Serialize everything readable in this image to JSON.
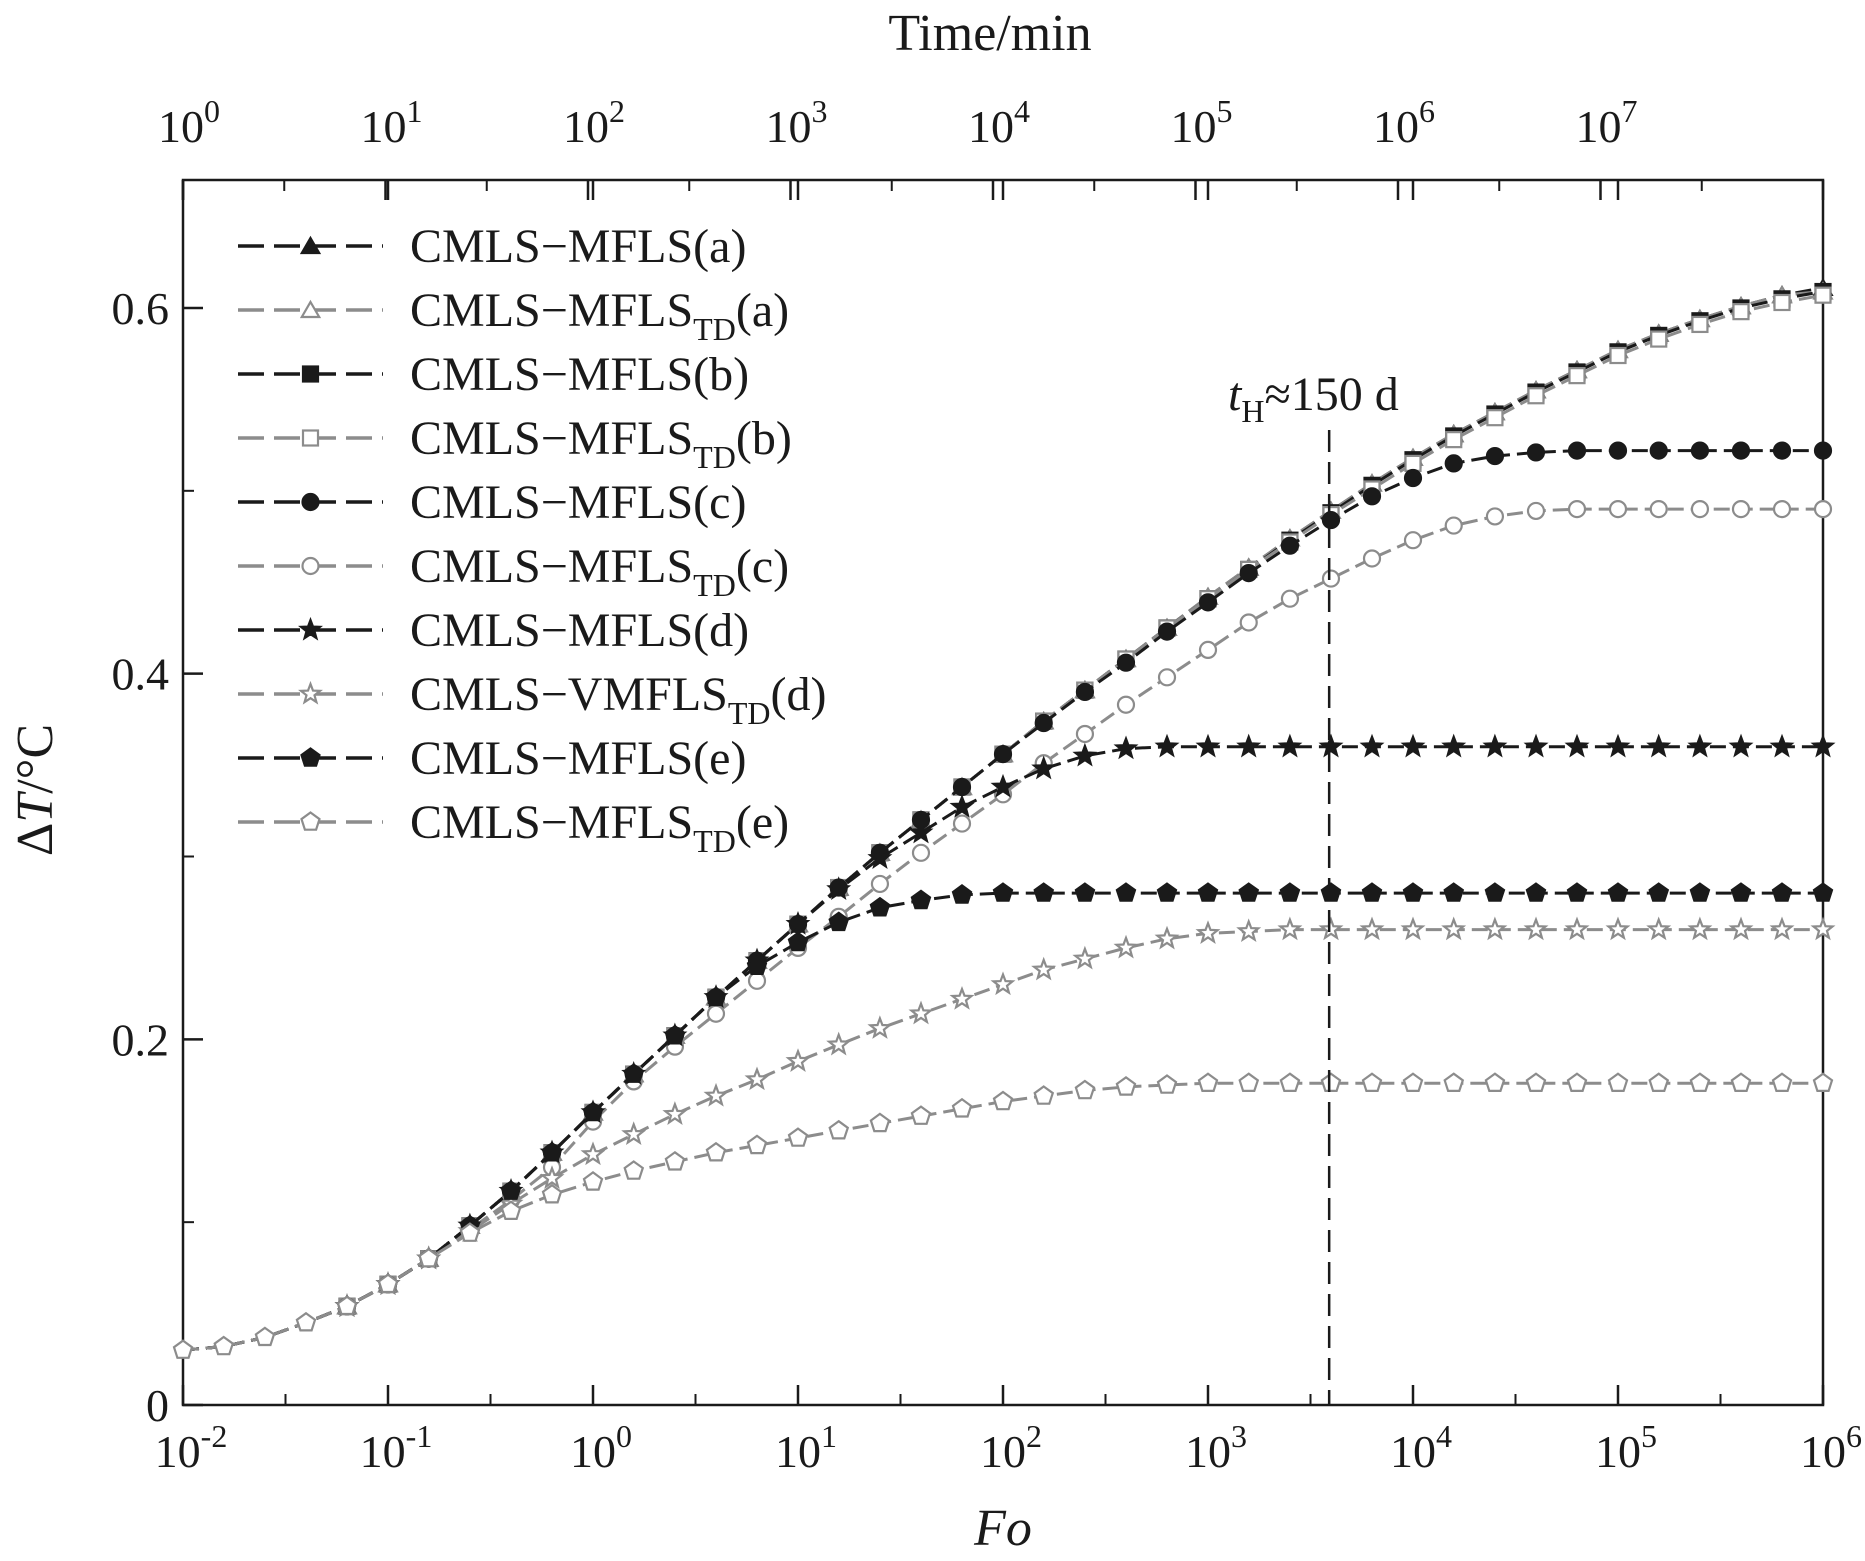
{
  "chart_data": {
    "type": "line",
    "x_scale": "log",
    "xlabel": "Fo",
    "x2label": "Time/min",
    "ylabel_symbol": "Δ",
    "ylabel_var": "T",
    "ylabel_unit": "/°C",
    "xlim": [
      0.01,
      1000000
    ],
    "ylim": [
      0,
      0.67
    ],
    "x_ticks": [
      {
        "base": "10",
        "exp": "-2",
        "value": 0.01
      },
      {
        "base": "10",
        "exp": "-1",
        "value": 0.1
      },
      {
        "base": "10",
        "exp": "0",
        "value": 1
      },
      {
        "base": "10",
        "exp": "1",
        "value": 10
      },
      {
        "base": "10",
        "exp": "2",
        "value": 100
      },
      {
        "base": "10",
        "exp": "3",
        "value": 1000
      },
      {
        "base": "10",
        "exp": "4",
        "value": 10000
      },
      {
        "base": "10",
        "exp": "5",
        "value": 100000
      },
      {
        "base": "10",
        "exp": "6",
        "value": 1000000
      }
    ],
    "x2_ticks": [
      {
        "base": "10",
        "exp": "0"
      },
      {
        "base": "10",
        "exp": "1"
      },
      {
        "base": "10",
        "exp": "2"
      },
      {
        "base": "10",
        "exp": "3"
      },
      {
        "base": "10",
        "exp": "4"
      },
      {
        "base": "10",
        "exp": "5"
      },
      {
        "base": "10",
        "exp": "6"
      },
      {
        "base": "10",
        "exp": "7"
      }
    ],
    "y_ticks": [
      {
        "label": "0",
        "value": 0
      },
      {
        "label": "0.2",
        "value": 0.2
      },
      {
        "label": "0.4",
        "value": 0.4
      },
      {
        "label": "0.6",
        "value": 0.6
      }
    ],
    "y_minor_ticks": [
      0.1,
      0.3,
      0.5
    ],
    "annotation": {
      "italic": "t",
      "sub": "H",
      "rest": "≈150 d",
      "x": 3900
    },
    "series": [
      {
        "name": "CMLS−MFLS(a)",
        "main": "CMLS−MFLS",
        "sub": "",
        "suffix": "(a)",
        "color": "#1a1a1a",
        "marker": "triangle",
        "filled": true,
        "growth": 10
      },
      {
        "name": "CMLS−MFLSTD(a)",
        "main": "CMLS−MFLS",
        "sub": "TD",
        "suffix": "(a)",
        "color": "#8c8c8c",
        "marker": "triangle",
        "filled": false,
        "growth": 10
      },
      {
        "name": "CMLS−MFLS(b)",
        "main": "CMLS−MFLS",
        "sub": "",
        "suffix": "(b)",
        "color": "#1a1a1a",
        "marker": "square",
        "filled": true,
        "growth": 10
      },
      {
        "name": "CMLS−MFLSTD(b)",
        "main": "CMLS−MFLS",
        "sub": "TD",
        "suffix": "(b)",
        "color": "#8c8c8c",
        "marker": "square",
        "filled": false,
        "growth": 10
      },
      {
        "name": "CMLS−MFLS(c)",
        "main": "CMLS−MFLS",
        "sub": "",
        "suffix": "(c)",
        "color": "#1a1a1a",
        "marker": "circle",
        "filled": true,
        "growth": 9
      },
      {
        "name": "CMLS−MFLSTD(c)",
        "main": "CMLS−MFLS",
        "sub": "TD",
        "suffix": "(c)",
        "color": "#8c8c8c",
        "marker": "circle",
        "filled": false,
        "growth": 8
      },
      {
        "name": "CMLS−MFLS(d)",
        "main": "CMLS−MFLS",
        "sub": "",
        "suffix": "(d)",
        "color": "#1a1a1a",
        "marker": "star",
        "filled": true,
        "growth": 7
      },
      {
        "name": "CMLS−VMFLSTD(d)",
        "main": "CMLS−VMFLS",
        "sub": "TD",
        "suffix": "(d)",
        "color": "#8c8c8c",
        "marker": "star",
        "filled": false,
        "growth": 6
      },
      {
        "name": "CMLS−MFLS(e)",
        "main": "CMLS−MFLS",
        "sub": "",
        "suffix": "(e)",
        "color": "#1a1a1a",
        "marker": "pentagon",
        "filled": true,
        "growth": 6
      },
      {
        "name": "CMLS−MFLSTD(e)",
        "main": "CMLS−MFLS",
        "sub": "TD",
        "suffix": "(e)",
        "color": "#8c8c8c",
        "marker": "pentagon",
        "filled": false,
        "growth": 5
      }
    ],
    "x": [
      0.01,
      0.0158,
      0.0251,
      0.0398,
      0.0631,
      0.1,
      0.158,
      0.251,
      0.398,
      0.631,
      1,
      1.58,
      2.51,
      3.98,
      6.31,
      10,
      15.8,
      25.1,
      39.8,
      63.1,
      100,
      158,
      251,
      398,
      631,
      1000,
      1580,
      2510,
      3980,
      6310,
      10000,
      15800,
      25100,
      39800,
      63100,
      100000,
      158000,
      251000,
      398000,
      631000,
      1000000
    ],
    "y": [
      [
        0.03,
        0.032,
        0.037,
        0.045,
        0.054,
        0.066,
        0.08,
        0.098,
        0.117,
        0.138,
        0.16,
        0.181,
        0.202,
        0.223,
        0.243,
        0.263,
        0.283,
        0.302,
        0.32,
        0.338,
        0.356,
        0.374,
        0.391,
        0.408,
        0.425,
        0.442,
        0.458,
        0.474,
        0.489,
        0.504,
        0.518,
        0.531,
        0.543,
        0.555,
        0.566,
        0.577,
        0.586,
        0.594,
        0.601,
        0.607,
        0.611
      ],
      [
        0.03,
        0.032,
        0.037,
        0.045,
        0.054,
        0.066,
        0.08,
        0.098,
        0.117,
        0.138,
        0.16,
        0.181,
        0.202,
        0.223,
        0.243,
        0.263,
        0.283,
        0.302,
        0.32,
        0.338,
        0.356,
        0.374,
        0.391,
        0.408,
        0.425,
        0.442,
        0.458,
        0.474,
        0.489,
        0.504,
        0.518,
        0.531,
        0.543,
        0.555,
        0.566,
        0.577,
        0.586,
        0.594,
        0.601,
        0.607,
        0.609
      ],
      [
        0.03,
        0.032,
        0.037,
        0.045,
        0.054,
        0.066,
        0.08,
        0.098,
        0.117,
        0.138,
        0.16,
        0.181,
        0.202,
        0.223,
        0.243,
        0.263,
        0.283,
        0.302,
        0.32,
        0.338,
        0.356,
        0.374,
        0.391,
        0.408,
        0.425,
        0.441,
        0.457,
        0.473,
        0.488,
        0.503,
        0.517,
        0.53,
        0.542,
        0.554,
        0.565,
        0.576,
        0.585,
        0.593,
        0.6,
        0.605,
        0.609
      ],
      [
        0.03,
        0.032,
        0.037,
        0.045,
        0.054,
        0.066,
        0.08,
        0.098,
        0.117,
        0.138,
        0.16,
        0.181,
        0.202,
        0.223,
        0.243,
        0.263,
        0.283,
        0.302,
        0.32,
        0.338,
        0.356,
        0.374,
        0.391,
        0.408,
        0.425,
        0.441,
        0.457,
        0.472,
        0.487,
        0.501,
        0.515,
        0.528,
        0.54,
        0.552,
        0.563,
        0.574,
        0.583,
        0.591,
        0.598,
        0.603,
        0.607
      ],
      [
        0.03,
        0.032,
        0.037,
        0.045,
        0.054,
        0.066,
        0.08,
        0.098,
        0.117,
        0.138,
        0.16,
        0.181,
        0.202,
        0.223,
        0.243,
        0.263,
        0.283,
        0.302,
        0.32,
        0.338,
        0.356,
        0.373,
        0.39,
        0.406,
        0.423,
        0.439,
        0.455,
        0.47,
        0.484,
        0.497,
        0.507,
        0.515,
        0.519,
        0.521,
        0.522,
        0.522,
        0.522,
        0.522,
        0.522,
        0.522,
        0.522
      ],
      [
        0.03,
        0.032,
        0.037,
        0.045,
        0.054,
        0.066,
        0.08,
        0.096,
        0.112,
        0.13,
        0.155,
        0.177,
        0.196,
        0.214,
        0.232,
        0.25,
        0.267,
        0.285,
        0.302,
        0.318,
        0.334,
        0.351,
        0.367,
        0.383,
        0.398,
        0.413,
        0.428,
        0.441,
        0.452,
        0.463,
        0.473,
        0.481,
        0.486,
        0.489,
        0.49,
        0.49,
        0.49,
        0.49,
        0.49,
        0.49,
        0.49
      ],
      [
        0.03,
        0.032,
        0.037,
        0.045,
        0.054,
        0.066,
        0.08,
        0.098,
        0.117,
        0.138,
        0.16,
        0.181,
        0.202,
        0.223,
        0.243,
        0.263,
        0.282,
        0.299,
        0.313,
        0.327,
        0.338,
        0.348,
        0.355,
        0.359,
        0.36,
        0.36,
        0.36,
        0.36,
        0.36,
        0.36,
        0.36,
        0.36,
        0.36,
        0.36,
        0.36,
        0.36,
        0.36,
        0.36,
        0.36,
        0.36,
        0.36
      ],
      [
        0.03,
        0.032,
        0.037,
        0.045,
        0.054,
        0.066,
        0.08,
        0.095,
        0.11,
        0.124,
        0.137,
        0.148,
        0.159,
        0.169,
        0.178,
        0.188,
        0.197,
        0.206,
        0.214,
        0.222,
        0.23,
        0.238,
        0.244,
        0.25,
        0.255,
        0.258,
        0.259,
        0.26,
        0.26,
        0.26,
        0.26,
        0.26,
        0.26,
        0.26,
        0.26,
        0.26,
        0.26,
        0.26,
        0.26,
        0.26,
        0.26
      ],
      [
        0.03,
        0.032,
        0.037,
        0.045,
        0.054,
        0.066,
        0.08,
        0.098,
        0.117,
        0.138,
        0.16,
        0.181,
        0.202,
        0.223,
        0.24,
        0.253,
        0.264,
        0.272,
        0.276,
        0.279,
        0.28,
        0.28,
        0.28,
        0.28,
        0.28,
        0.28,
        0.28,
        0.28,
        0.28,
        0.28,
        0.28,
        0.28,
        0.28,
        0.28,
        0.28,
        0.28,
        0.28,
        0.28,
        0.28,
        0.28,
        0.28
      ],
      [
        0.03,
        0.032,
        0.037,
        0.045,
        0.054,
        0.066,
        0.08,
        0.094,
        0.106,
        0.115,
        0.122,
        0.128,
        0.133,
        0.138,
        0.142,
        0.146,
        0.15,
        0.154,
        0.158,
        0.162,
        0.166,
        0.169,
        0.172,
        0.174,
        0.175,
        0.176,
        0.176,
        0.176,
        0.176,
        0.176,
        0.176,
        0.176,
        0.176,
        0.176,
        0.176,
        0.176,
        0.176,
        0.176,
        0.176,
        0.176,
        0.176
      ]
    ]
  }
}
